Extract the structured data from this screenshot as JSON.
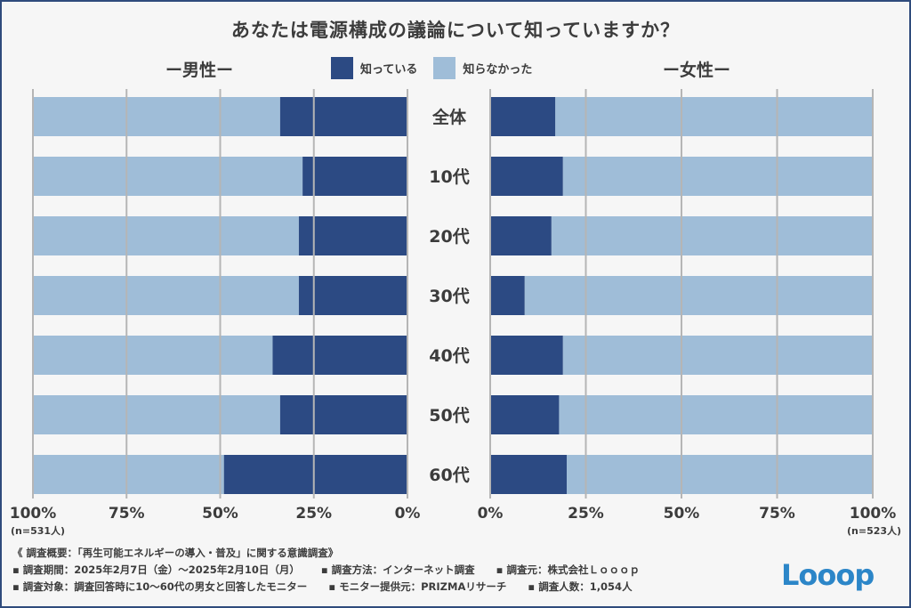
{
  "title": "あなたは電源構成の議論について知っていますか？",
  "colors": {
    "known": "#2c4a83",
    "unknown": "#9fbdd8",
    "grid": "#b5b5b5",
    "logo": "#2c86c8"
  },
  "chart_data": [
    {
      "type": "bar",
      "panel": "男性",
      "label": "ー男性ー",
      "orientation": "horizontal-stacked",
      "direction": "right-to-left",
      "categories": [
        "全体",
        "10代",
        "20代",
        "30代",
        "40代",
        "50代",
        "60代"
      ],
      "series": [
        {
          "name": "知っている",
          "values": [
            34,
            28,
            29,
            29,
            36,
            34,
            49
          ]
        },
        {
          "name": "知らなかった",
          "values": [
            66,
            72,
            71,
            71,
            64,
            66,
            51
          ]
        }
      ],
      "xlim": [
        0,
        100
      ],
      "ticks": [
        "100%",
        "75%",
        "50%",
        "25%",
        "0%"
      ],
      "n": "(n=531人)"
    },
    {
      "type": "bar",
      "panel": "女性",
      "label": "ー女性ー",
      "orientation": "horizontal-stacked",
      "direction": "left-to-right",
      "categories": [
        "全体",
        "10代",
        "20代",
        "30代",
        "40代",
        "50代",
        "60代"
      ],
      "series": [
        {
          "name": "知っている",
          "values": [
            17,
            19,
            16,
            9,
            19,
            18,
            20
          ]
        },
        {
          "name": "知らなかった",
          "values": [
            83,
            81,
            84,
            91,
            81,
            82,
            80
          ]
        }
      ],
      "xlim": [
        0,
        100
      ],
      "ticks": [
        "0%",
        "25%",
        "50%",
        "75%",
        "100%"
      ],
      "n": "(n=523人)"
    }
  ],
  "legend": {
    "known": "知っている",
    "unknown": "知らなかった"
  },
  "footer": {
    "line1": "《 調査概要：「再生可能エネルギーの導入・普及」に関する意識調査》",
    "period": "▪ 調査期間：2025年2月7日（金）〜2025年2月10日（月）",
    "method": "▪ 調査方法：インターネット調査",
    "source": "▪ 調査元：株式会社Ｌｏｏｏｐ",
    "target": "▪ 調査対象：調査回答時に10〜60代の男女と回答したモニター",
    "provider": "▪ モニター提供元：PRIZMAリサーチ",
    "count": "▪ 調査人数：1,054人"
  },
  "logo": "Looop"
}
